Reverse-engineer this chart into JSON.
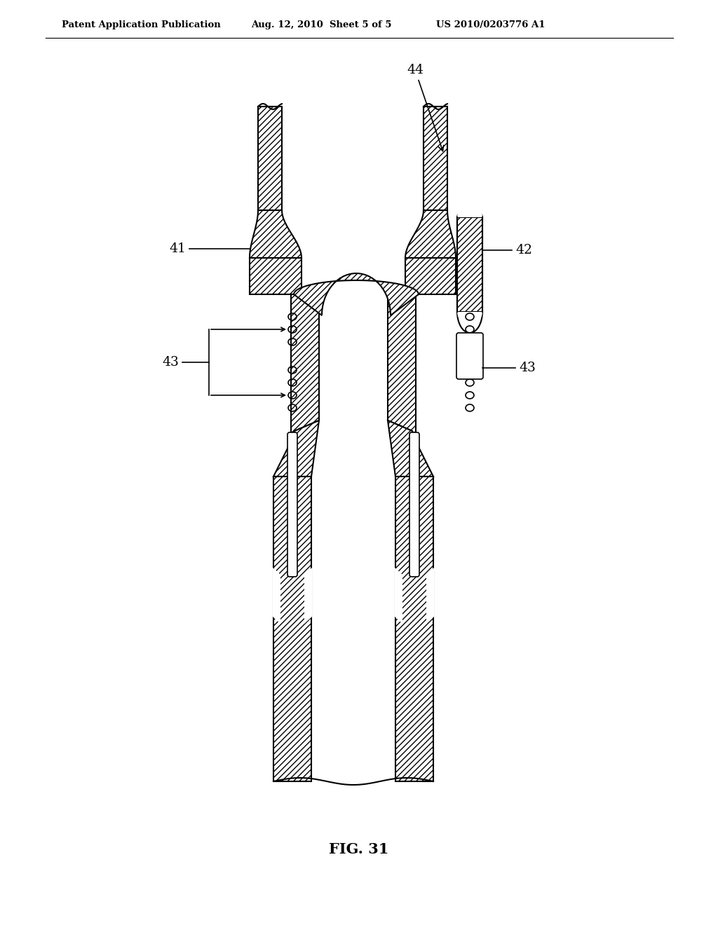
{
  "header_left": "Patent Application Publication",
  "header_center": "Aug. 12, 2010  Sheet 5 of 5",
  "header_right": "US 2010/0203776 A1",
  "fig_title": "FIG. 31",
  "bg_color": "#ffffff",
  "line_color": "#000000",
  "fig_width": 1024,
  "fig_height": 1320
}
